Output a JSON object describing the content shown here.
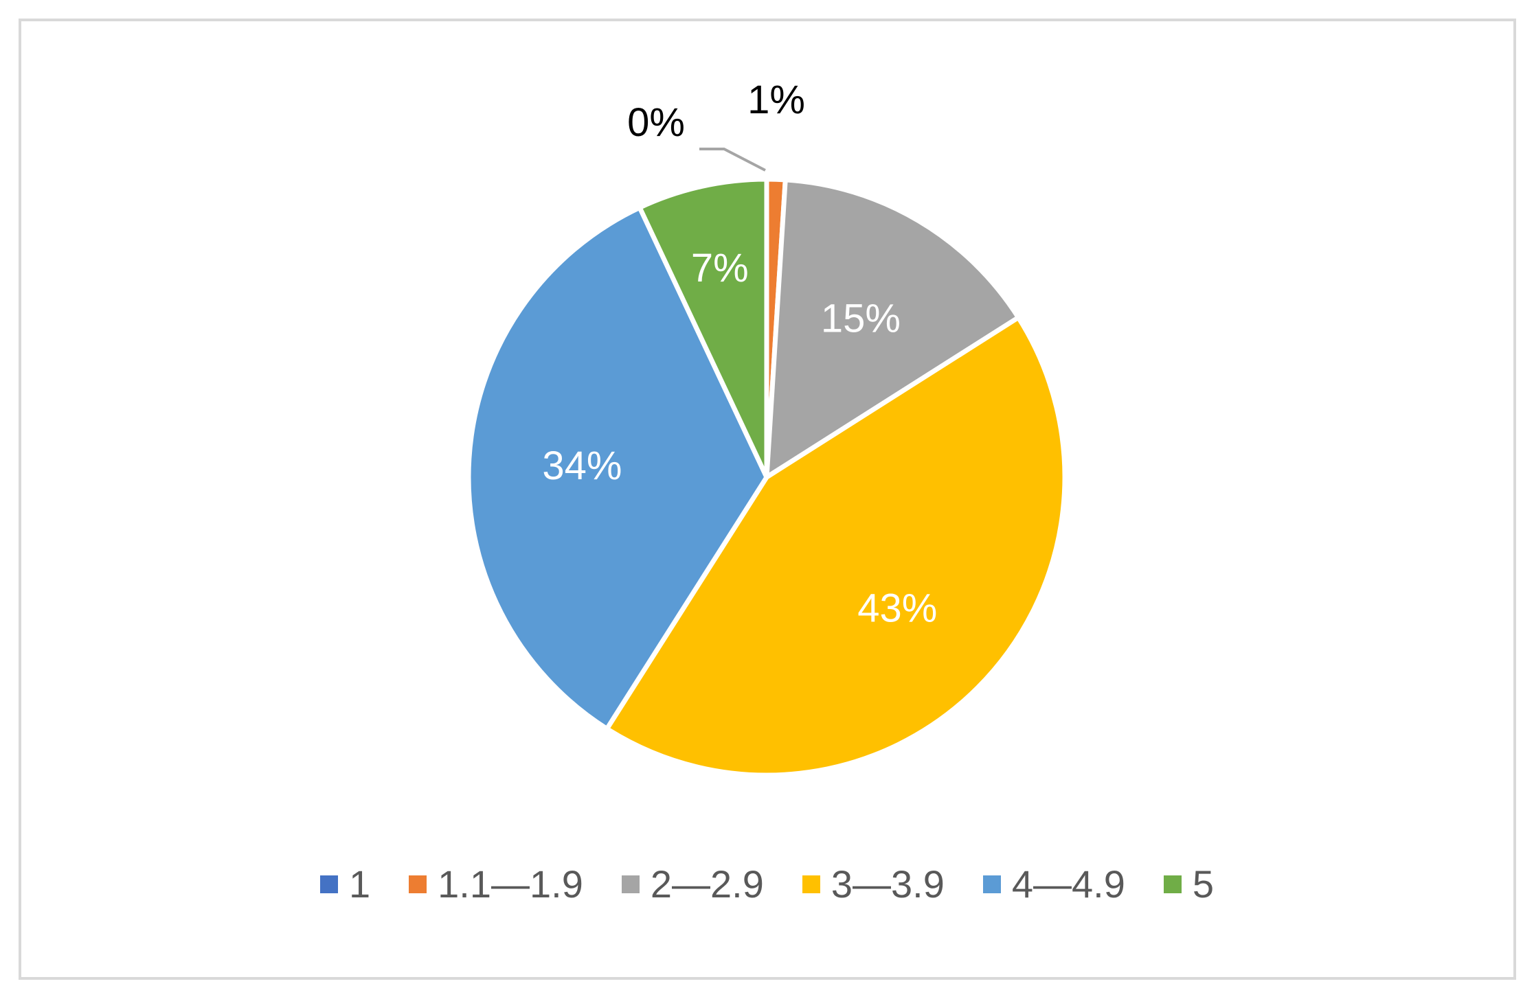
{
  "chart_data": {
    "type": "pie",
    "categories": [
      "1",
      "1.1—1.9",
      "2—2.9",
      "3—3.9",
      "4—4.9",
      "5"
    ],
    "values": [
      0,
      1,
      15,
      43,
      34,
      7
    ],
    "data_labels": [
      "0%",
      "1%",
      "15%",
      "43%",
      "34%",
      "7%"
    ],
    "colors": [
      "#4472c4",
      "#ed7d31",
      "#a5a5a5",
      "#ffc000",
      "#5b9bd5",
      "#70ad47"
    ],
    "label_colors": [
      "#000000",
      "#000000",
      "#ffffff",
      "#ffffff",
      "#ffffff",
      "#ffffff"
    ],
    "title": "",
    "legend_position": "bottom",
    "start_angle_deg": 0,
    "direction": "clockwise"
  }
}
